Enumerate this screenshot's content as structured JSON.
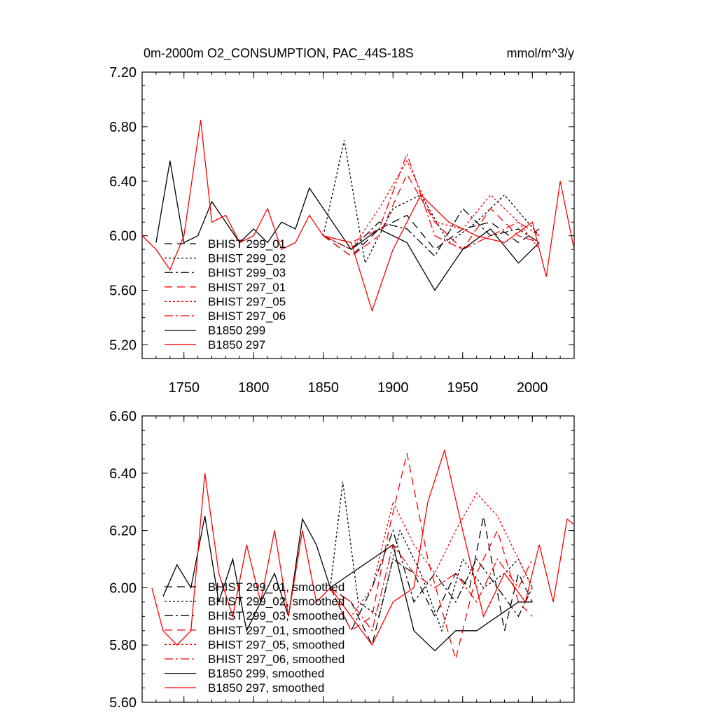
{
  "chart_data": [
    {
      "type": "line",
      "title": "0m-2000m O2_CONSUMPTION, PAC_44S-18S",
      "units": "mmol/m^3/y",
      "xlabel": "",
      "ylabel": "",
      "xlim": [
        1720,
        2030
      ],
      "ylim": [
        5.1,
        7.2
      ],
      "yticks": [
        5.2,
        5.6,
        6.0,
        6.4,
        6.8,
        7.2
      ],
      "ytick_labels": [
        "5.20",
        "5.60",
        "6.00",
        "6.40",
        "6.80",
        "7.20"
      ],
      "xticks": [
        1750,
        1800,
        1850,
        1900,
        1950,
        2000
      ],
      "xtick_labels": [
        "1750",
        "1800",
        "1850",
        "1900",
        "1950",
        "2000"
      ],
      "legend": "lower-left",
      "series": [
        {
          "name": "BHIST 299_01",
          "color": "#000000",
          "dash": "long-dash",
          "x": [
            1850,
            1870,
            1890,
            1910,
            1930,
            1950,
            1970,
            1990,
            2005
          ],
          "values": [
            6.0,
            5.85,
            6.05,
            6.15,
            5.9,
            6.05,
            6.1,
            5.95,
            6.05
          ]
        },
        {
          "name": "BHIST 299_02",
          "color": "#000000",
          "dash": "dotted",
          "x": [
            1850,
            1865,
            1880,
            1900,
            1920,
            1940,
            1960,
            1980,
            2005
          ],
          "values": [
            6.0,
            6.7,
            5.8,
            6.2,
            6.3,
            5.95,
            6.1,
            6.3,
            6.0
          ]
        },
        {
          "name": "BHIST 299_03",
          "color": "#000000",
          "dash": "dash-dot",
          "x": [
            1850,
            1870,
            1890,
            1910,
            1930,
            1950,
            1970,
            1990,
            2005
          ],
          "values": [
            6.0,
            5.9,
            6.1,
            6.05,
            5.85,
            6.2,
            6.0,
            6.05,
            5.95
          ]
        },
        {
          "name": "BHIST 297_01",
          "color": "#ff0000",
          "dash": "long-dash",
          "x": [
            1850,
            1870,
            1890,
            1910,
            1930,
            1950,
            1970,
            1990,
            2005
          ],
          "values": [
            6.0,
            5.85,
            6.0,
            6.45,
            6.1,
            5.9,
            6.2,
            6.0,
            5.95
          ]
        },
        {
          "name": "BHIST 297_05",
          "color": "#ff0000",
          "dash": "dotted",
          "x": [
            1850,
            1870,
            1890,
            1910,
            1930,
            1950,
            1970,
            1990,
            2005
          ],
          "values": [
            6.0,
            5.9,
            6.2,
            6.55,
            6.1,
            6.05,
            6.3,
            6.1,
            5.9
          ]
        },
        {
          "name": "BHIST 297_06",
          "color": "#ff0000",
          "dash": "dash-dot",
          "x": [
            1850,
            1870,
            1890,
            1910,
            1930,
            1950,
            1970,
            1990,
            2005
          ],
          "values": [
            6.0,
            5.95,
            6.05,
            6.6,
            6.0,
            5.9,
            6.0,
            6.1,
            6.0
          ]
        },
        {
          "name": "B1850 299",
          "color": "#000000",
          "dash": "solid",
          "x": [
            1730,
            1740,
            1750,
            1760,
            1770,
            1780,
            1790,
            1800,
            1810,
            1820,
            1830,
            1840,
            1850,
            1870,
            1890,
            1910,
            1930,
            1950,
            1970,
            1990,
            2005
          ],
          "values": [
            5.95,
            6.55,
            5.95,
            6.0,
            6.25,
            6.1,
            5.95,
            6.05,
            5.95,
            6.1,
            6.05,
            6.35,
            6.2,
            5.9,
            6.05,
            5.95,
            5.6,
            5.9,
            6.05,
            5.8,
            5.95
          ]
        },
        {
          "name": "B1850 297",
          "color": "#ff0000",
          "dash": "solid",
          "x": [
            1720,
            1730,
            1740,
            1750,
            1762,
            1770,
            1780,
            1790,
            1800,
            1810,
            1820,
            1830,
            1840,
            1850,
            1870,
            1885,
            1900,
            1920,
            1940,
            1960,
            1980,
            2000,
            2010,
            2020,
            2030
          ],
          "values": [
            6.0,
            5.9,
            5.75,
            6.0,
            6.85,
            6.1,
            6.15,
            5.95,
            6.0,
            6.2,
            5.9,
            5.95,
            6.15,
            6.0,
            5.95,
            5.45,
            5.9,
            6.3,
            6.1,
            6.0,
            5.95,
            6.1,
            5.7,
            6.4,
            5.9
          ]
        }
      ]
    },
    {
      "type": "line",
      "title": "",
      "xlabel": "",
      "ylabel": "",
      "xlim": [
        1720,
        2030
      ],
      "ylim": [
        5.6,
        6.6
      ],
      "yticks": [
        5.6,
        5.8,
        6.0,
        6.2,
        6.4,
        6.6
      ],
      "ytick_labels": [
        "5.60",
        "5.80",
        "6.00",
        "6.20",
        "6.40",
        "6.60"
      ],
      "legend": "lower-left",
      "series": [
        {
          "name": "BHIST 299_01, smoothed",
          "color": "#000000",
          "dash": "long-dash",
          "x": [
            1855,
            1870,
            1885,
            1900,
            1915,
            1930,
            1945,
            1955,
            1965,
            1980,
            1990,
            2000
          ],
          "values": [
            6.0,
            5.95,
            5.8,
            6.1,
            6.05,
            5.9,
            6.05,
            6.0,
            6.25,
            5.85,
            6.05,
            5.95
          ]
        },
        {
          "name": "BHIST 299_02, smoothed",
          "color": "#000000",
          "dash": "dotted",
          "x": [
            1855,
            1864,
            1875,
            1890,
            1905,
            1920,
            1935,
            1950,
            1965,
            1980,
            1990,
            2000
          ],
          "values": [
            6.0,
            6.37,
            5.95,
            5.9,
            6.2,
            6.05,
            5.85,
            6.1,
            6.0,
            6.05,
            6.1,
            6.0
          ]
        },
        {
          "name": "BHIST 299_03, smoothed",
          "color": "#000000",
          "dash": "dash-dot",
          "x": [
            1855,
            1870,
            1885,
            1900,
            1915,
            1930,
            1945,
            1960,
            1975,
            1990,
            2000
          ],
          "values": [
            6.0,
            5.85,
            6.0,
            6.2,
            5.95,
            6.05,
            5.95,
            6.1,
            6.0,
            5.9,
            6.0
          ]
        },
        {
          "name": "BHIST 297_01, smoothed",
          "color": "#ff0000",
          "dash": "long-dash",
          "x": [
            1855,
            1870,
            1885,
            1897,
            1910,
            1925,
            1945,
            1960,
            1975,
            1990,
            2000
          ],
          "values": [
            6.0,
            5.85,
            5.9,
            6.2,
            6.47,
            6.1,
            5.75,
            6.05,
            6.2,
            5.95,
            5.9
          ]
        },
        {
          "name": "BHIST 297_05, smoothed",
          "color": "#ff0000",
          "dash": "dotted",
          "x": [
            1855,
            1870,
            1885,
            1900,
            1915,
            1930,
            1945,
            1960,
            1975,
            1990,
            2000
          ],
          "values": [
            6.0,
            5.9,
            6.0,
            6.3,
            6.15,
            6.05,
            6.2,
            6.33,
            6.25,
            6.1,
            6.0
          ]
        },
        {
          "name": "BHIST 297_06, smoothed",
          "color": "#ff0000",
          "dash": "dash-dot",
          "x": [
            1855,
            1870,
            1885,
            1900,
            1915,
            1930,
            1945,
            1960,
            1975,
            1990,
            2000
          ],
          "values": [
            6.0,
            5.95,
            5.85,
            6.15,
            6.05,
            6.0,
            6.05,
            5.95,
            6.1,
            6.0,
            6.1
          ]
        },
        {
          "name": "B1850 299, smoothed",
          "color": "#000000",
          "dash": "solid",
          "x": [
            1735,
            1745,
            1755,
            1765,
            1775,
            1785,
            1795,
            1805,
            1815,
            1825,
            1835,
            1845,
            1855,
            1870,
            1885,
            1900,
            1915,
            1930,
            1945,
            1960,
            1975,
            1990,
            2000
          ],
          "values": [
            5.97,
            6.08,
            6.0,
            6.25,
            5.95,
            6.1,
            5.85,
            5.95,
            6.05,
            5.9,
            6.24,
            6.15,
            6.0,
            6.05,
            6.1,
            6.15,
            5.85,
            5.78,
            5.85,
            5.85,
            5.9,
            5.95,
            5.95
          ]
        },
        {
          "name": "B1850 297, smoothed",
          "color": "#ff0000",
          "dash": "solid",
          "x": [
            1727,
            1735,
            1745,
            1755,
            1765,
            1775,
            1785,
            1795,
            1805,
            1815,
            1825,
            1835,
            1845,
            1855,
            1870,
            1885,
            1900,
            1915,
            1925,
            1937,
            1950,
            1965,
            1980,
            1995,
            2005,
            2015,
            2025,
            2030
          ],
          "values": [
            6.0,
            5.85,
            5.8,
            5.85,
            6.4,
            6.05,
            5.9,
            6.15,
            5.95,
            6.2,
            5.9,
            6.2,
            5.95,
            6.0,
            5.9,
            5.8,
            5.95,
            6.0,
            6.3,
            6.48,
            6.2,
            5.9,
            6.05,
            5.95,
            6.15,
            5.95,
            6.24,
            6.22
          ]
        }
      ]
    }
  ]
}
